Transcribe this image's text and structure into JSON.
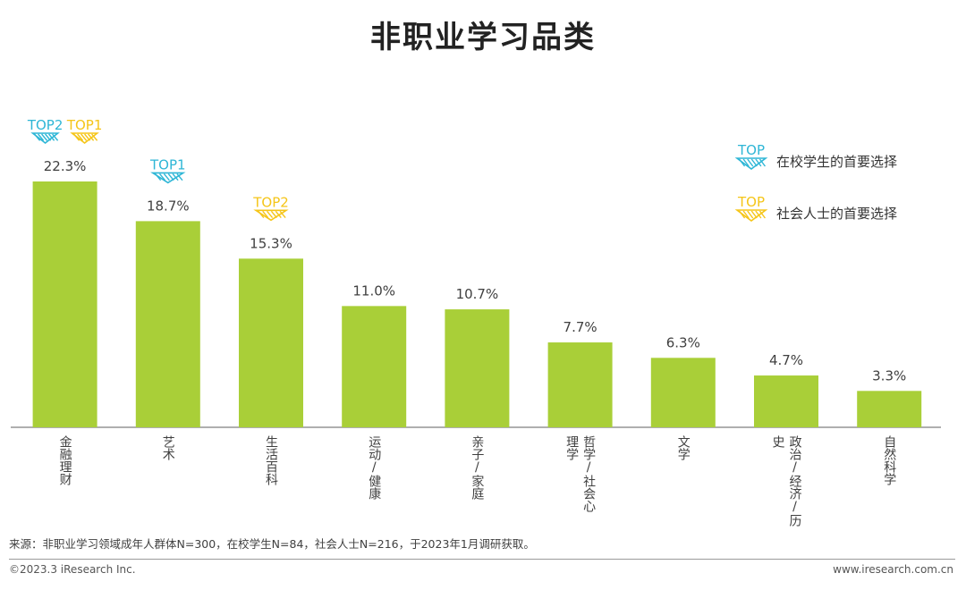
{
  "title": "非职业学习品类",
  "chart_data": {
    "type": "bar",
    "categories": [
      "金融理财",
      "艺术",
      "生活百科",
      "运动/健康",
      "亲子/家庭",
      "哲学/社会心理学",
      "文学",
      "政治/经济/历史",
      "自然科学"
    ],
    "category_label_lines": [
      [
        "金融理财"
      ],
      [
        "艺术"
      ],
      [
        "生活百科"
      ],
      [
        "运动/健康"
      ],
      [
        "亲子/家庭"
      ],
      [
        "哲学/社会心",
        "理学"
      ],
      [
        "文学"
      ],
      [
        "政治/经济/历",
        "史"
      ],
      [
        "自然科学"
      ]
    ],
    "values": [
      22.3,
      18.7,
      15.3,
      11.0,
      10.7,
      7.7,
      6.3,
      4.7,
      3.3
    ],
    "value_labels": [
      "22.3%",
      "18.7%",
      "15.3%",
      "11.0%",
      "10.7%",
      "7.7%",
      "6.3%",
      "4.7%",
      "3.3%"
    ],
    "ylim": [
      0,
      22.3
    ],
    "bar_color": "#a9cf38",
    "label_color": "#404040",
    "axis_color": "#7f7f7f",
    "grid": false,
    "badges": [
      {
        "category_index": 0,
        "text": "TOP2",
        "group": "student"
      },
      {
        "category_index": 0,
        "text": "TOP1",
        "group": "social"
      },
      {
        "category_index": 1,
        "text": "TOP1",
        "group": "student"
      },
      {
        "category_index": 2,
        "text": "TOP2",
        "group": "social"
      }
    ],
    "legend": {
      "placement": "top-right",
      "items": [
        {
          "group": "student",
          "marker_text": "TOP",
          "label": "在校学生的首要选择",
          "color": "#2eb6d6"
        },
        {
          "group": "social",
          "marker_text": "TOP",
          "label": "社会人士的首要选择",
          "color": "#f5c518"
        }
      ]
    }
  },
  "footnote": "来源：非职业学习领域成年人群体N=300，在校学生N=84，社会人士N=216，于2023年1月调研获取。",
  "copyright": "©2023.3 iResearch Inc.",
  "website": "www.iresearch.com.cn"
}
